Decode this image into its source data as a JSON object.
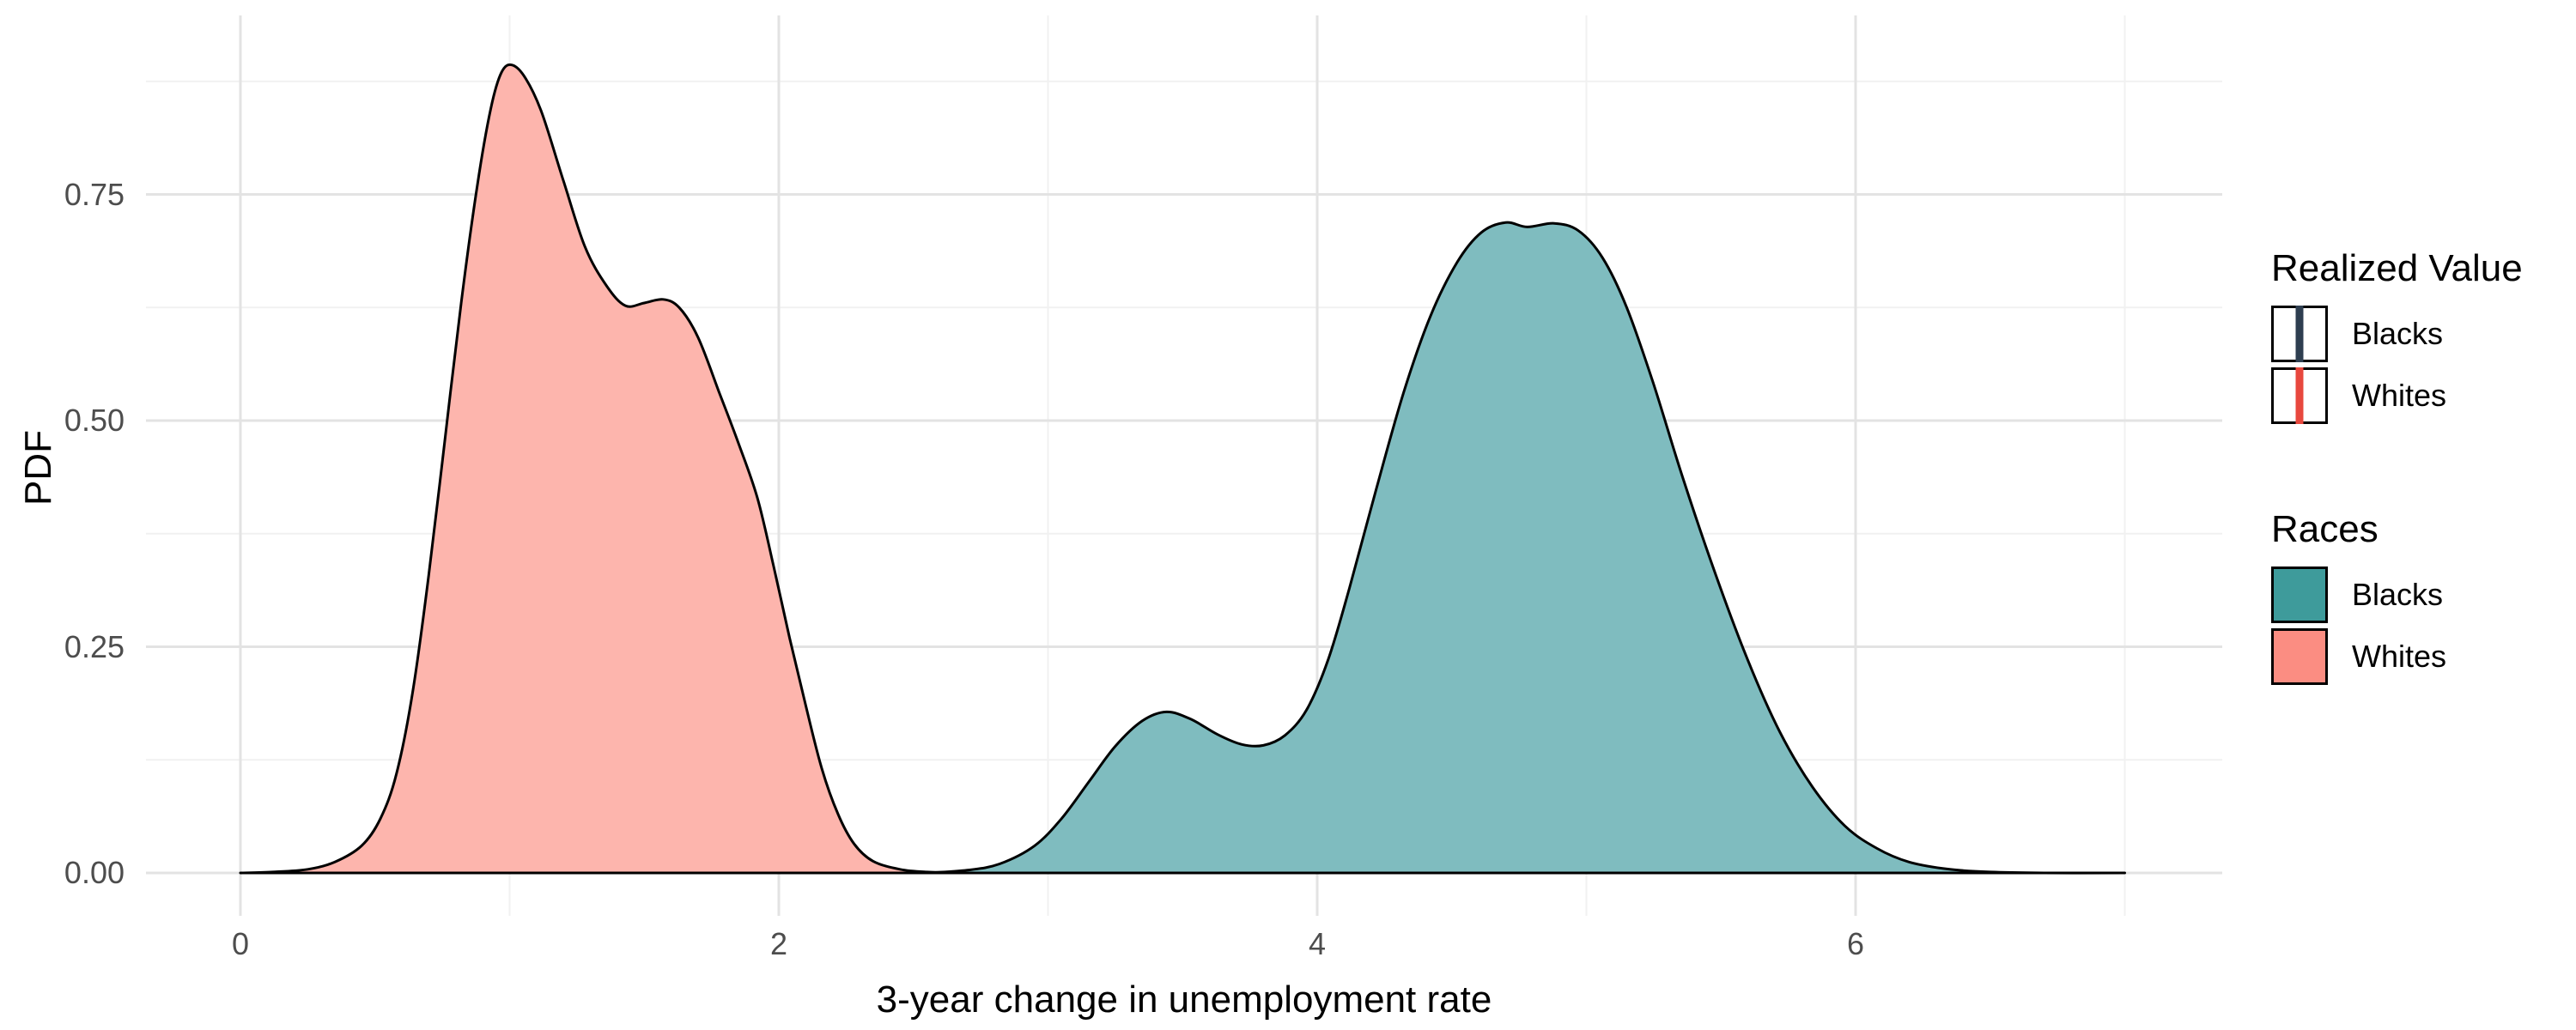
{
  "chart_data": {
    "type": "area",
    "subtype": "kernel-density",
    "title": "",
    "xlabel": "3-year change in unemployment rate",
    "ylabel": "PDF",
    "xlim": [
      -0.35,
      7.36
    ],
    "ylim": [
      -0.045,
      0.947
    ],
    "grid": "major and minor gridlines, light grey on white, no axis lines, no tick marks",
    "x_ticks": [
      {
        "value": 0,
        "label": "0"
      },
      {
        "value": 2,
        "label": "2"
      },
      {
        "value": 4,
        "label": "4"
      },
      {
        "value": 6,
        "label": "6"
      }
    ],
    "x_minor_ticks": [
      1,
      3,
      5,
      7
    ],
    "y_ticks": [
      {
        "value": 0.0,
        "label": "0.00"
      },
      {
        "value": 0.25,
        "label": "0.25"
      },
      {
        "value": 0.5,
        "label": "0.50"
      },
      {
        "value": 0.75,
        "label": "0.75"
      }
    ],
    "y_minor_ticks": [
      0.125,
      0.375,
      0.625,
      0.875
    ],
    "series": [
      {
        "name": "Whites",
        "fill": "#FDB5AD",
        "stroke": "#000000",
        "peak": {
          "x": 1.0,
          "y": 0.893
        },
        "points": [
          [
            0.0,
            0.0
          ],
          [
            0.12,
            0.001
          ],
          [
            0.25,
            0.004
          ],
          [
            0.35,
            0.012
          ],
          [
            0.45,
            0.03
          ],
          [
            0.52,
            0.06
          ],
          [
            0.58,
            0.11
          ],
          [
            0.64,
            0.2
          ],
          [
            0.7,
            0.33
          ],
          [
            0.76,
            0.48
          ],
          [
            0.82,
            0.63
          ],
          [
            0.88,
            0.76
          ],
          [
            0.93,
            0.845
          ],
          [
            0.97,
            0.885
          ],
          [
            1.01,
            0.893
          ],
          [
            1.06,
            0.878
          ],
          [
            1.12,
            0.84
          ],
          [
            1.2,
            0.765
          ],
          [
            1.28,
            0.692
          ],
          [
            1.36,
            0.649
          ],
          [
            1.43,
            0.627
          ],
          [
            1.5,
            0.63
          ],
          [
            1.57,
            0.634
          ],
          [
            1.63,
            0.625
          ],
          [
            1.7,
            0.592
          ],
          [
            1.78,
            0.53
          ],
          [
            1.85,
            0.475
          ],
          [
            1.92,
            0.415
          ],
          [
            1.98,
            0.34
          ],
          [
            2.04,
            0.26
          ],
          [
            2.1,
            0.185
          ],
          [
            2.16,
            0.115
          ],
          [
            2.22,
            0.065
          ],
          [
            2.28,
            0.032
          ],
          [
            2.35,
            0.013
          ],
          [
            2.45,
            0.004
          ],
          [
            2.55,
            0.001
          ],
          [
            2.7,
            0.0
          ]
        ]
      },
      {
        "name": "Blacks",
        "fill": "#7FBCBF",
        "stroke": "#000000",
        "peak": {
          "x": 4.8,
          "y": 0.72
        },
        "points": [
          [
            2.55,
            0.0
          ],
          [
            2.7,
            0.003
          ],
          [
            2.82,
            0.01
          ],
          [
            2.95,
            0.03
          ],
          [
            3.05,
            0.06
          ],
          [
            3.15,
            0.1
          ],
          [
            3.25,
            0.14
          ],
          [
            3.35,
            0.168
          ],
          [
            3.44,
            0.178
          ],
          [
            3.53,
            0.17
          ],
          [
            3.63,
            0.153
          ],
          [
            3.72,
            0.142
          ],
          [
            3.8,
            0.141
          ],
          [
            3.88,
            0.152
          ],
          [
            3.96,
            0.18
          ],
          [
            4.04,
            0.235
          ],
          [
            4.12,
            0.315
          ],
          [
            4.22,
            0.425
          ],
          [
            4.32,
            0.53
          ],
          [
            4.42,
            0.615
          ],
          [
            4.52,
            0.675
          ],
          [
            4.61,
            0.708
          ],
          [
            4.7,
            0.719
          ],
          [
            4.78,
            0.714
          ],
          [
            4.88,
            0.718
          ],
          [
            4.97,
            0.71
          ],
          [
            5.06,
            0.68
          ],
          [
            5.15,
            0.625
          ],
          [
            5.25,
            0.54
          ],
          [
            5.36,
            0.435
          ],
          [
            5.48,
            0.33
          ],
          [
            5.6,
            0.235
          ],
          [
            5.72,
            0.155
          ],
          [
            5.84,
            0.095
          ],
          [
            5.96,
            0.052
          ],
          [
            6.08,
            0.027
          ],
          [
            6.2,
            0.012
          ],
          [
            6.35,
            0.004
          ],
          [
            6.5,
            0.001
          ],
          [
            6.7,
            0.0
          ],
          [
            7.0,
            0.0
          ]
        ]
      }
    ],
    "colors": {
      "grid_major": "#E3E3E3",
      "grid_minor": "#F1F1F1",
      "tick_text": "#4D4D4D",
      "axis_title_text": "#000000"
    }
  },
  "legends": [
    {
      "title": "Realized Value",
      "key_style": "vline",
      "items": [
        {
          "label": "Blacks",
          "line_color": "#2E3E50"
        },
        {
          "label": "Whites",
          "line_color": "#E8483E"
        }
      ]
    },
    {
      "title": "Races",
      "key_style": "fill",
      "items": [
        {
          "label": "Blacks",
          "fill": "#3E9B9B"
        },
        {
          "label": "Whites",
          "fill": "#FB8D82"
        }
      ]
    }
  ]
}
